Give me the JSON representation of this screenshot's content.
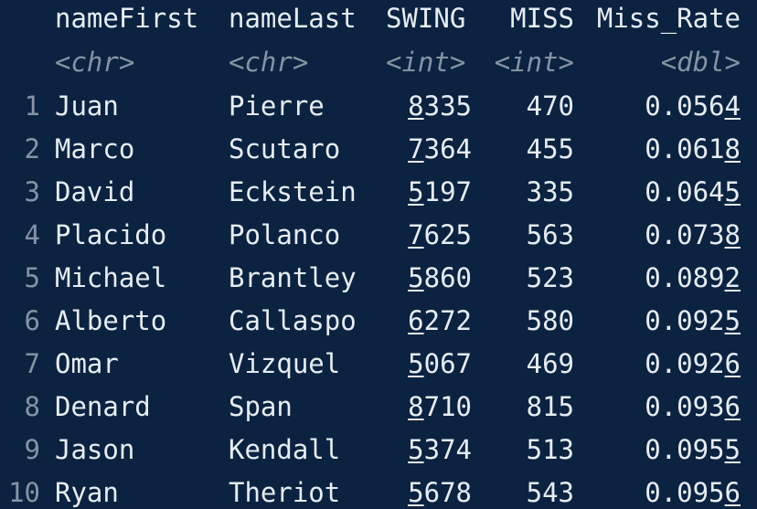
{
  "table": {
    "columns": [
      "nameFirst",
      "nameLast",
      "SWING",
      "MISS",
      "Miss_Rate"
    ],
    "types": [
      "<chr>",
      "<chr>",
      "<int>",
      "<int>",
      "<dbl>"
    ],
    "rows": [
      {
        "idx": "1",
        "nameFirst": "Juan",
        "nameLast": "Pierre",
        "swing_lead": "8",
        "swing_rest": "335",
        "miss": "470",
        "rate_main": "0.056",
        "rate_last": "4"
      },
      {
        "idx": "2",
        "nameFirst": "Marco",
        "nameLast": "Scutaro",
        "swing_lead": "7",
        "swing_rest": "364",
        "miss": "455",
        "rate_main": "0.061",
        "rate_last": "8"
      },
      {
        "idx": "3",
        "nameFirst": "David",
        "nameLast": "Eckstein",
        "swing_lead": "5",
        "swing_rest": "197",
        "miss": "335",
        "rate_main": "0.064",
        "rate_last": "5"
      },
      {
        "idx": "4",
        "nameFirst": "Placido",
        "nameLast": "Polanco",
        "swing_lead": "7",
        "swing_rest": "625",
        "miss": "563",
        "rate_main": "0.073",
        "rate_last": "8"
      },
      {
        "idx": "5",
        "nameFirst": "Michael",
        "nameLast": "Brantley",
        "swing_lead": "5",
        "swing_rest": "860",
        "miss": "523",
        "rate_main": "0.089",
        "rate_last": "2"
      },
      {
        "idx": "6",
        "nameFirst": "Alberto",
        "nameLast": "Callaspo",
        "swing_lead": "6",
        "swing_rest": "272",
        "miss": "580",
        "rate_main": "0.092",
        "rate_last": "5"
      },
      {
        "idx": "7",
        "nameFirst": "Omar",
        "nameLast": "Vizquel",
        "swing_lead": "5",
        "swing_rest": "067",
        "miss": "469",
        "rate_main": "0.092",
        "rate_last": "6"
      },
      {
        "idx": "8",
        "nameFirst": "Denard",
        "nameLast": "Span",
        "swing_lead": "8",
        "swing_rest": "710",
        "miss": "815",
        "rate_main": "0.093",
        "rate_last": "6"
      },
      {
        "idx": "9",
        "nameFirst": "Jason",
        "nameLast": "Kendall",
        "swing_lead": "5",
        "swing_rest": "374",
        "miss": "513",
        "rate_main": "0.095",
        "rate_last": "5"
      },
      {
        "idx": "10",
        "nameFirst": "Ryan",
        "nameLast": "Theriot",
        "swing_lead": "5",
        "swing_rest": "678",
        "miss": "543",
        "rate_main": "0.095",
        "rate_last": "6"
      }
    ]
  },
  "colors": {
    "background": "#0b2340",
    "text": "#e6ecf3",
    "muted": "#8593a5"
  }
}
